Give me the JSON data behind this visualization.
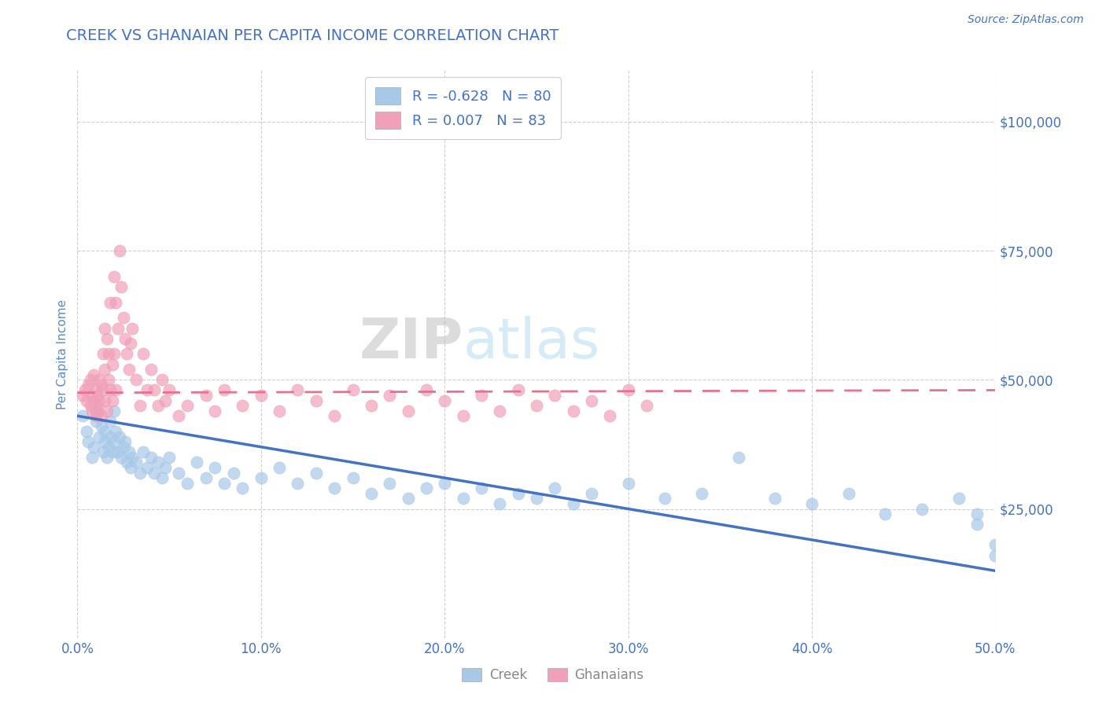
{
  "title": "CREEK VS GHANAIAN PER CAPITA INCOME CORRELATION CHART",
  "source_text": "Source: ZipAtlas.com",
  "ylabel": "Per Capita Income",
  "xlim": [
    0.0,
    0.5
  ],
  "ylim": [
    0,
    110000
  ],
  "yticks": [
    0,
    25000,
    50000,
    75000,
    100000
  ],
  "ytick_labels": [
    "",
    "$25,000",
    "$50,000",
    "$75,000",
    "$100,000"
  ],
  "xticks": [
    0.0,
    0.1,
    0.2,
    0.3,
    0.4,
    0.5
  ],
  "xtick_labels": [
    "0.0%",
    "10.0%",
    "20.0%",
    "30.0%",
    "40.0%",
    "50.0%"
  ],
  "creek_color": "#A8C8E8",
  "ghanaian_color": "#F0A0B8",
  "creek_line_color": "#4472C4",
  "ghanaian_line_color": "#E87090",
  "title_color": "#4472C4",
  "axis_label_color": "#5A8AC6",
  "tick_color": "#4472C4",
  "grid_color": "#BBBBBB",
  "background_color": "#FFFFFF",
  "creek_R": -0.628,
  "creek_N": 80,
  "ghanaian_R": 0.007,
  "ghanaian_N": 83,
  "creek_trend_x0": 0.0,
  "creek_trend_y0": 43000,
  "creek_trend_x1": 0.5,
  "creek_trend_y1": 13000,
  "ghanaian_trend_x0": 0.0,
  "ghanaian_trend_y0": 47500,
  "ghanaian_trend_x1": 0.5,
  "ghanaian_trend_y1": 48000,
  "creek_scatter_x": [
    0.003,
    0.005,
    0.006,
    0.008,
    0.009,
    0.01,
    0.01,
    0.012,
    0.013,
    0.014,
    0.015,
    0.015,
    0.016,
    0.017,
    0.018,
    0.018,
    0.019,
    0.02,
    0.02,
    0.021,
    0.022,
    0.023,
    0.024,
    0.025,
    0.026,
    0.027,
    0.028,
    0.029,
    0.03,
    0.032,
    0.034,
    0.036,
    0.038,
    0.04,
    0.042,
    0.044,
    0.046,
    0.048,
    0.05,
    0.055,
    0.06,
    0.065,
    0.07,
    0.075,
    0.08,
    0.085,
    0.09,
    0.1,
    0.11,
    0.12,
    0.13,
    0.14,
    0.15,
    0.16,
    0.17,
    0.18,
    0.19,
    0.2,
    0.21,
    0.22,
    0.23,
    0.24,
    0.25,
    0.26,
    0.27,
    0.28,
    0.3,
    0.32,
    0.34,
    0.36,
    0.38,
    0.4,
    0.42,
    0.44,
    0.46,
    0.48,
    0.49,
    0.49,
    0.5,
    0.5
  ],
  "creek_scatter_y": [
    43000,
    40000,
    38000,
    35000,
    37000,
    44000,
    42000,
    39000,
    41000,
    36000,
    38000,
    40000,
    35000,
    37000,
    42000,
    39000,
    36000,
    44000,
    38000,
    40000,
    36000,
    39000,
    35000,
    37000,
    38000,
    34000,
    36000,
    33000,
    35000,
    34000,
    32000,
    36000,
    33000,
    35000,
    32000,
    34000,
    31000,
    33000,
    35000,
    32000,
    30000,
    34000,
    31000,
    33000,
    30000,
    32000,
    29000,
    31000,
    33000,
    30000,
    32000,
    29000,
    31000,
    28000,
    30000,
    27000,
    29000,
    30000,
    27000,
    29000,
    26000,
    28000,
    27000,
    29000,
    26000,
    28000,
    30000,
    27000,
    28000,
    35000,
    27000,
    26000,
    28000,
    24000,
    25000,
    27000,
    24000,
    22000,
    18000,
    16000
  ],
  "ghanaian_scatter_x": [
    0.003,
    0.004,
    0.005,
    0.006,
    0.007,
    0.007,
    0.008,
    0.008,
    0.009,
    0.009,
    0.01,
    0.01,
    0.01,
    0.011,
    0.011,
    0.012,
    0.012,
    0.013,
    0.013,
    0.014,
    0.014,
    0.015,
    0.015,
    0.015,
    0.016,
    0.016,
    0.017,
    0.017,
    0.018,
    0.018,
    0.019,
    0.019,
    0.02,
    0.02,
    0.021,
    0.021,
    0.022,
    0.023,
    0.024,
    0.025,
    0.026,
    0.027,
    0.028,
    0.029,
    0.03,
    0.032,
    0.034,
    0.036,
    0.038,
    0.04,
    0.042,
    0.044,
    0.046,
    0.048,
    0.05,
    0.055,
    0.06,
    0.07,
    0.075,
    0.08,
    0.09,
    0.1,
    0.11,
    0.12,
    0.13,
    0.14,
    0.15,
    0.16,
    0.17,
    0.18,
    0.19,
    0.2,
    0.21,
    0.22,
    0.23,
    0.24,
    0.25,
    0.26,
    0.27,
    0.28,
    0.29,
    0.3,
    0.31
  ],
  "ghanaian_scatter_y": [
    47000,
    48000,
    46000,
    49000,
    50000,
    45000,
    47000,
    44000,
    46000,
    51000,
    43000,
    48000,
    45000,
    47000,
    44000,
    50000,
    46000,
    49000,
    43000,
    55000,
    48000,
    52000,
    46000,
    60000,
    58000,
    44000,
    55000,
    50000,
    65000,
    48000,
    53000,
    46000,
    70000,
    55000,
    65000,
    48000,
    60000,
    75000,
    68000,
    62000,
    58000,
    55000,
    52000,
    57000,
    60000,
    50000,
    45000,
    55000,
    48000,
    52000,
    48000,
    45000,
    50000,
    46000,
    48000,
    43000,
    45000,
    47000,
    44000,
    48000,
    45000,
    47000,
    44000,
    48000,
    46000,
    43000,
    48000,
    45000,
    47000,
    44000,
    48000,
    46000,
    43000,
    47000,
    44000,
    48000,
    45000,
    47000,
    44000,
    46000,
    43000,
    48000,
    45000
  ]
}
